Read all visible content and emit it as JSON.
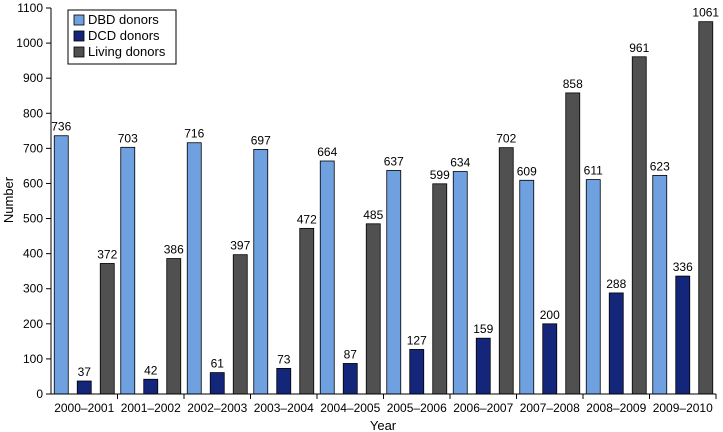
{
  "chart_data": {
    "type": "bar",
    "xlabel": "Year",
    "ylabel": "Number",
    "ylim": [
      0,
      1100
    ],
    "ytick_step": 100,
    "grid": false,
    "legend_position": "top-left",
    "categories": [
      "2000–2001",
      "2001–2002",
      "2002–2003",
      "2003–2004",
      "2004–2005",
      "2005–2006",
      "2006–2007",
      "2007–2008",
      "2008–2009",
      "2009–2010"
    ],
    "series": [
      {
        "name": "DBD donors",
        "color": "#6fa0e0",
        "values": [
          736,
          703,
          716,
          697,
          664,
          637,
          634,
          609,
          611,
          623
        ]
      },
      {
        "name": "DCD donors",
        "color": "#14267a",
        "values": [
          37,
          42,
          61,
          73,
          87,
          127,
          159,
          200,
          288,
          336
        ]
      },
      {
        "name": "Living donors",
        "color": "#505050",
        "values": [
          372,
          386,
          397,
          472,
          485,
          599,
          702,
          858,
          961,
          1061
        ]
      }
    ]
  }
}
